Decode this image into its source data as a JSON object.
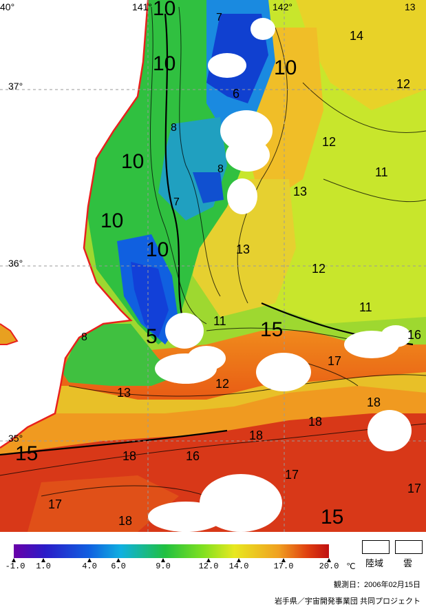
{
  "map": {
    "lon_labels": [
      "40°",
      "141°",
      "142°",
      "13"
    ],
    "lat_labels": [
      "37°",
      "36°",
      "35°"
    ],
    "contour_labels_large": [
      "10",
      "10",
      "10",
      "10",
      "10",
      "10",
      "15",
      "5",
      "15",
      "15"
    ],
    "contour_labels_small": [
      "7",
      "14",
      "6",
      "12",
      "8",
      "12",
      "11",
      "8",
      "13",
      "7",
      "13",
      "12",
      "11",
      "11",
      "8",
      "16",
      "17",
      "12",
      "13",
      "18",
      "18",
      "18",
      "16",
      "18",
      "17",
      "17",
      "17",
      "18"
    ],
    "colors": {
      "land": "#ffffff",
      "coast": "#e8201c",
      "cloud": "#ffffff",
      "graticule": "#9a9a9a"
    }
  },
  "colorbar": {
    "ticks": [
      "-1.0",
      "1.0",
      "4.0",
      "6.0",
      "9.0",
      "12.0",
      "14.0",
      "17.0",
      "20.0"
    ],
    "unit": "℃",
    "stops": [
      "#6a00a8",
      "#2a1cc8",
      "#1060e0",
      "#10b0e0",
      "#20c040",
      "#80e020",
      "#e8e820",
      "#f0a020",
      "#e04010",
      "#c01010"
    ]
  },
  "legend": {
    "land_label": "陸域",
    "cloud_label": "雲"
  },
  "observation": "観測日：2006年02月15日",
  "credit": "岩手県／宇宙開発事業団 共同プロジェクト"
}
